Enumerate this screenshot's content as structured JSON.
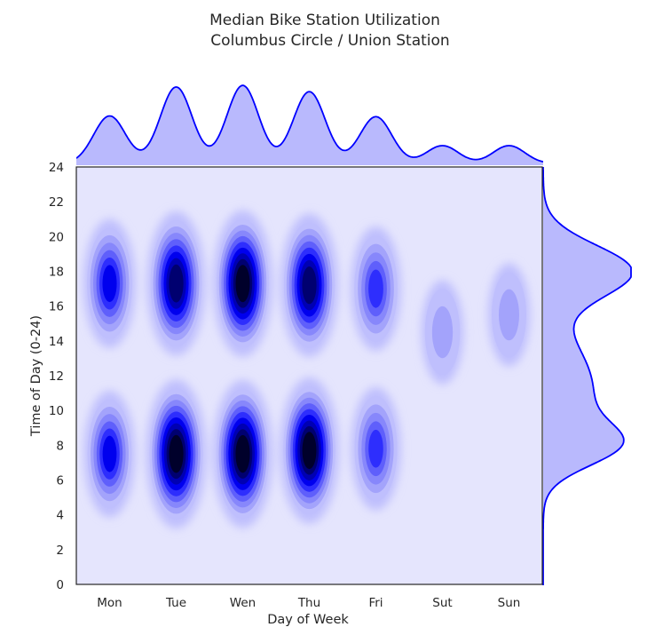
{
  "chart_data": {
    "type": "kde-joint",
    "title": "Median Bike Station Utilization",
    "subtitle": "Columbus Circle / Union Station",
    "xlabel": "Day of Week",
    "ylabel": "Time of Day (0-24)",
    "categories": [
      "Mon",
      "Tue",
      "Wen",
      "Thu",
      "Fri",
      "Sut",
      "Sun"
    ],
    "ylim": [
      0,
      24
    ],
    "yticks": [
      "0",
      "2",
      "4",
      "6",
      "8",
      "10",
      "12",
      "14",
      "16",
      "18",
      "20",
      "22",
      "24"
    ],
    "grid": false,
    "colors": {
      "background": "#e5e5fd",
      "contour_levels": [
        "#bfbffd",
        "#a3a3fb",
        "#8787fb",
        "#5f5ffb",
        "#2e2efd",
        "#0000ee",
        "#0000b3",
        "#000070",
        "#00002b"
      ],
      "marginal_fill": "#b9b9fd",
      "marginal_line": "#0000ff",
      "frame": "#262626"
    },
    "density_blobs": [
      {
        "day": "Mon",
        "hour": 7.5,
        "peak": 0.62
      },
      {
        "day": "Mon",
        "hour": 17.3,
        "peak": 0.66
      },
      {
        "day": "Tue",
        "hour": 7.5,
        "peak": 1.0
      },
      {
        "day": "Tue",
        "hour": 17.3,
        "peak": 0.92
      },
      {
        "day": "Wen",
        "hour": 7.5,
        "peak": 0.98
      },
      {
        "day": "Wen",
        "hour": 17.3,
        "peak": 0.96
      },
      {
        "day": "Thu",
        "hour": 7.7,
        "peak": 0.95
      },
      {
        "day": "Thu",
        "hour": 17.2,
        "peak": 0.9
      },
      {
        "day": "Fri",
        "hour": 7.8,
        "peak": 0.56
      },
      {
        "day": "Fri",
        "hour": 17.0,
        "peak": 0.58
      },
      {
        "day": "Sut",
        "hour": 14.5,
        "peak": 0.24
      },
      {
        "day": "Sun",
        "hour": 15.5,
        "peak": 0.22
      }
    ],
    "marginal_x": [
      {
        "day": "Mon",
        "height": 0.61
      },
      {
        "day": "Tue",
        "height": 0.98
      },
      {
        "day": "Wen",
        "height": 1.0
      },
      {
        "day": "Thu",
        "height": 0.92
      },
      {
        "day": "Fri",
        "height": 0.6
      },
      {
        "day": "Sut",
        "height": 0.23
      },
      {
        "day": "Sun",
        "height": 0.23
      }
    ],
    "marginal_y": [
      {
        "hour": 8.0,
        "density": 0.77
      },
      {
        "hour": 10.5,
        "density": 0.34
      },
      {
        "hour": 13.0,
        "density": 0.35
      },
      {
        "hour": 18.0,
        "density": 1.0
      }
    ]
  }
}
